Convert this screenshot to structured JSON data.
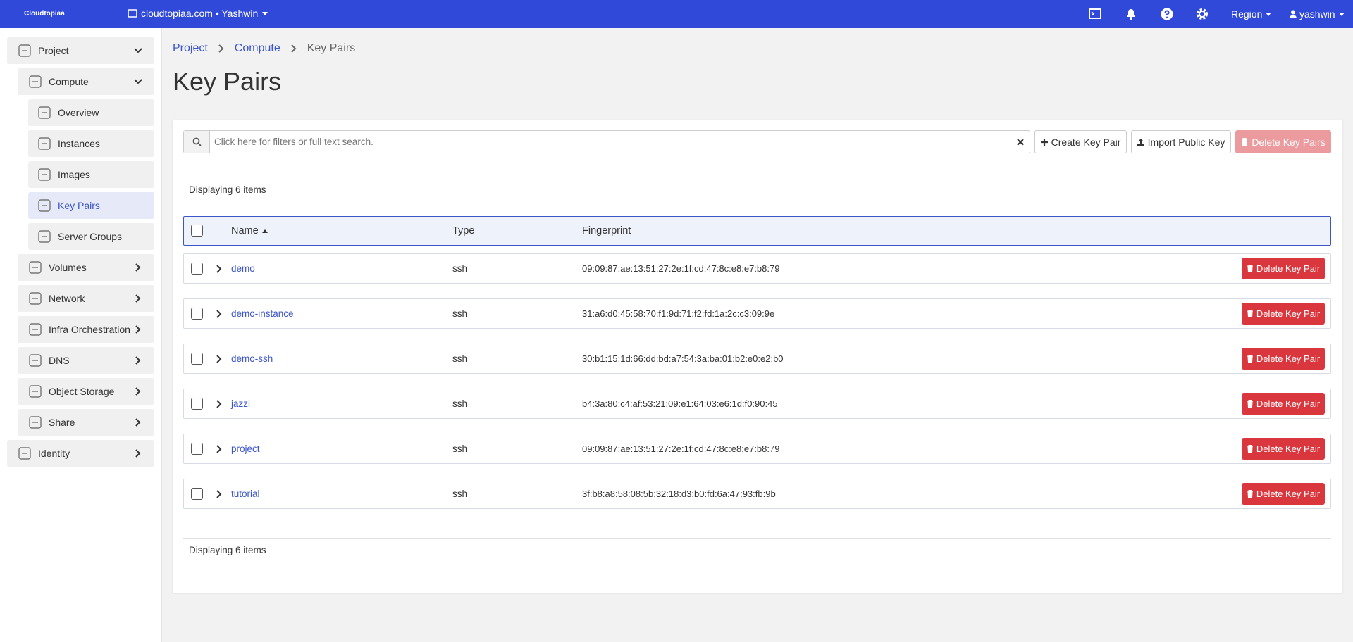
{
  "header": {
    "logo": "Cloudtopiaa",
    "project": "cloudtopiaa.com • Yashwin",
    "region": "Region",
    "user": "yashwin"
  },
  "sidebar": [
    {
      "label": "Project",
      "children": [
        {
          "label": "Compute",
          "children": [
            {
              "label": "Overview"
            },
            {
              "label": "Instances"
            },
            {
              "label": "Images"
            },
            {
              "label": "Key Pairs",
              "active": true
            },
            {
              "label": "Server Groups"
            }
          ]
        },
        {
          "label": "Volumes"
        },
        {
          "label": "Network"
        },
        {
          "label": "Infra Orchestration"
        },
        {
          "label": "DNS"
        },
        {
          "label": "Object Storage"
        },
        {
          "label": "Share"
        }
      ]
    },
    {
      "label": "Identity"
    }
  ],
  "breadcrumb": [
    "Project",
    "Compute",
    "Key Pairs"
  ],
  "title": "Key Pairs",
  "toolbar": {
    "search_placeholder": "Click here for filters or full text search.",
    "create": "Create Key Pair",
    "import": "Import Public Key",
    "delete": "Delete Key Pairs"
  },
  "count_top": "Displaying 6 items",
  "count_bottom": "Displaying 6 items",
  "table": {
    "columns": [
      "Name",
      "Type",
      "Fingerprint"
    ],
    "rows": [
      {
        "name": "demo",
        "type": "ssh",
        "fingerprint": "09:09:87:ae:13:51:27:2e:1f:cd:47:8c:e8:e7:b8:79",
        "action": "Delete Key Pair"
      },
      {
        "name": "demo-instance",
        "type": "ssh",
        "fingerprint": "31:a6:d0:45:58:70:f1:9d:71:f2:fd:1a:2c:c3:09:9e",
        "action": "Delete Key Pair"
      },
      {
        "name": "demo-ssh",
        "type": "ssh",
        "fingerprint": "30:b1:15:1d:66:dd:bd:a7:54:3a:ba:01:b2:e0:e2:b0",
        "action": "Delete Key Pair"
      },
      {
        "name": "jazzi",
        "type": "ssh",
        "fingerprint": "b4:3a:80:c4:af:53:21:09:e1:64:03:e6:1d:f0:90:45",
        "action": "Delete Key Pair"
      },
      {
        "name": "project",
        "type": "ssh",
        "fingerprint": "09:09:87:ae:13:51:27:2e:1f:cd:47:8c:e8:e7:b8:79",
        "action": "Delete Key Pair"
      },
      {
        "name": "tutorial",
        "type": "ssh",
        "fingerprint": "3f:b8:a8:58:08:5b:32:18:d3:b0:fd:6a:47:93:fb:9b",
        "action": "Delete Key Pair"
      }
    ]
  }
}
